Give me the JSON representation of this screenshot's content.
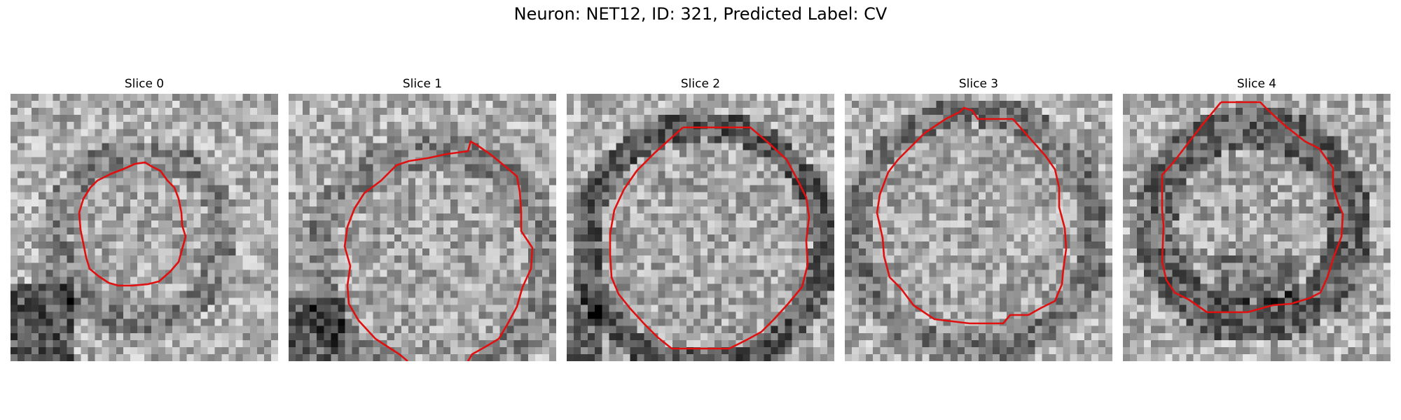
{
  "figure": {
    "title": "Neuron: NET12, ID: 321, Predicted Label: CV",
    "contour_color": "#e01010",
    "colormap": "grayscale",
    "panels": [
      {
        "title": "Slice 0",
        "contour_shape": "ring-small"
      },
      {
        "title": "Slice 1",
        "contour_shape": "ring-open-bottom"
      },
      {
        "title": "Slice 2",
        "contour_shape": "ring-large"
      },
      {
        "title": "Slice 3",
        "contour_shape": "ring-large"
      },
      {
        "title": "Slice 4",
        "contour_shape": "ring-large"
      }
    ]
  }
}
